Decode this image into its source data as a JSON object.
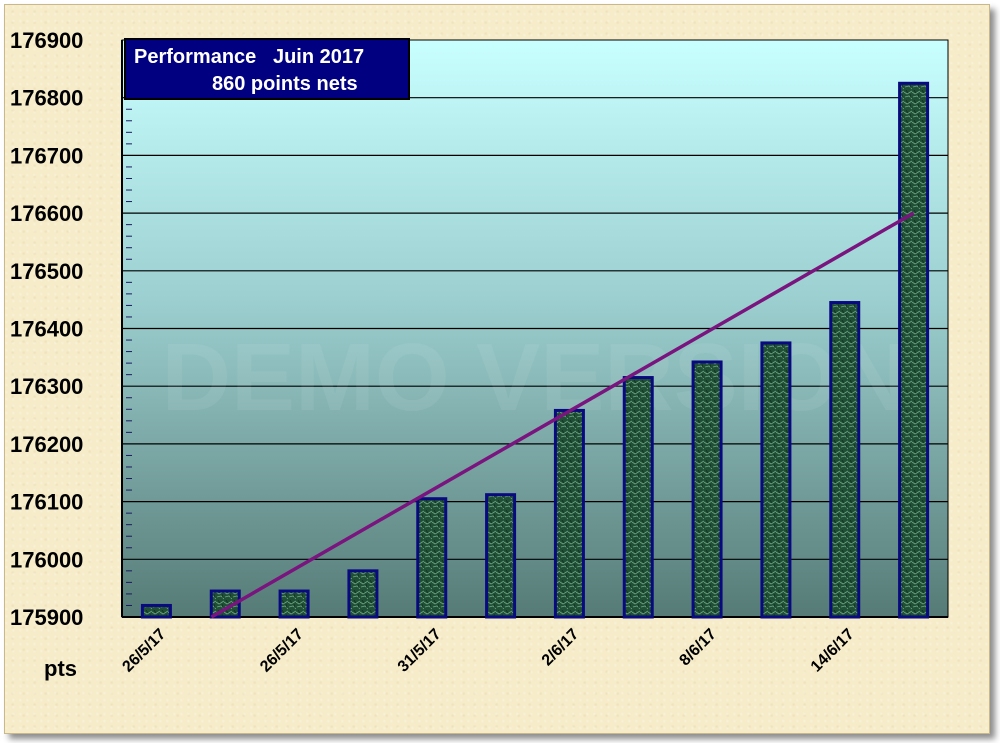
{
  "chart_data": {
    "type": "bar",
    "title": "Performance   Juin 2017",
    "subtitle": "860 points nets",
    "watermark": "DEMO VERSION",
    "ylabel": "pts",
    "ylim": [
      175900,
      176900
    ],
    "yticks": [
      175900,
      176000,
      176100,
      176200,
      176300,
      176400,
      176500,
      176600,
      176700,
      176800,
      176900
    ],
    "grid": true,
    "categories": [
      "26/5/17",
      "",
      "26/5/17",
      "",
      "31/5/17",
      "",
      "2/6/17",
      "",
      "8/6/17",
      "",
      "14/6/17",
      ""
    ],
    "values": [
      175920,
      175945,
      175945,
      175980,
      176105,
      176112,
      176258,
      176315,
      176342,
      176375,
      176445,
      176825
    ],
    "trendline": {
      "start": 175900,
      "end": 176600
    },
    "colors": {
      "bar_fill": "#1f4f35",
      "bar_stroke": "#0a0a80",
      "trend": "#7a147e",
      "plot_top": "#c8ffff",
      "plot_bottom": "#5a7f79"
    }
  }
}
